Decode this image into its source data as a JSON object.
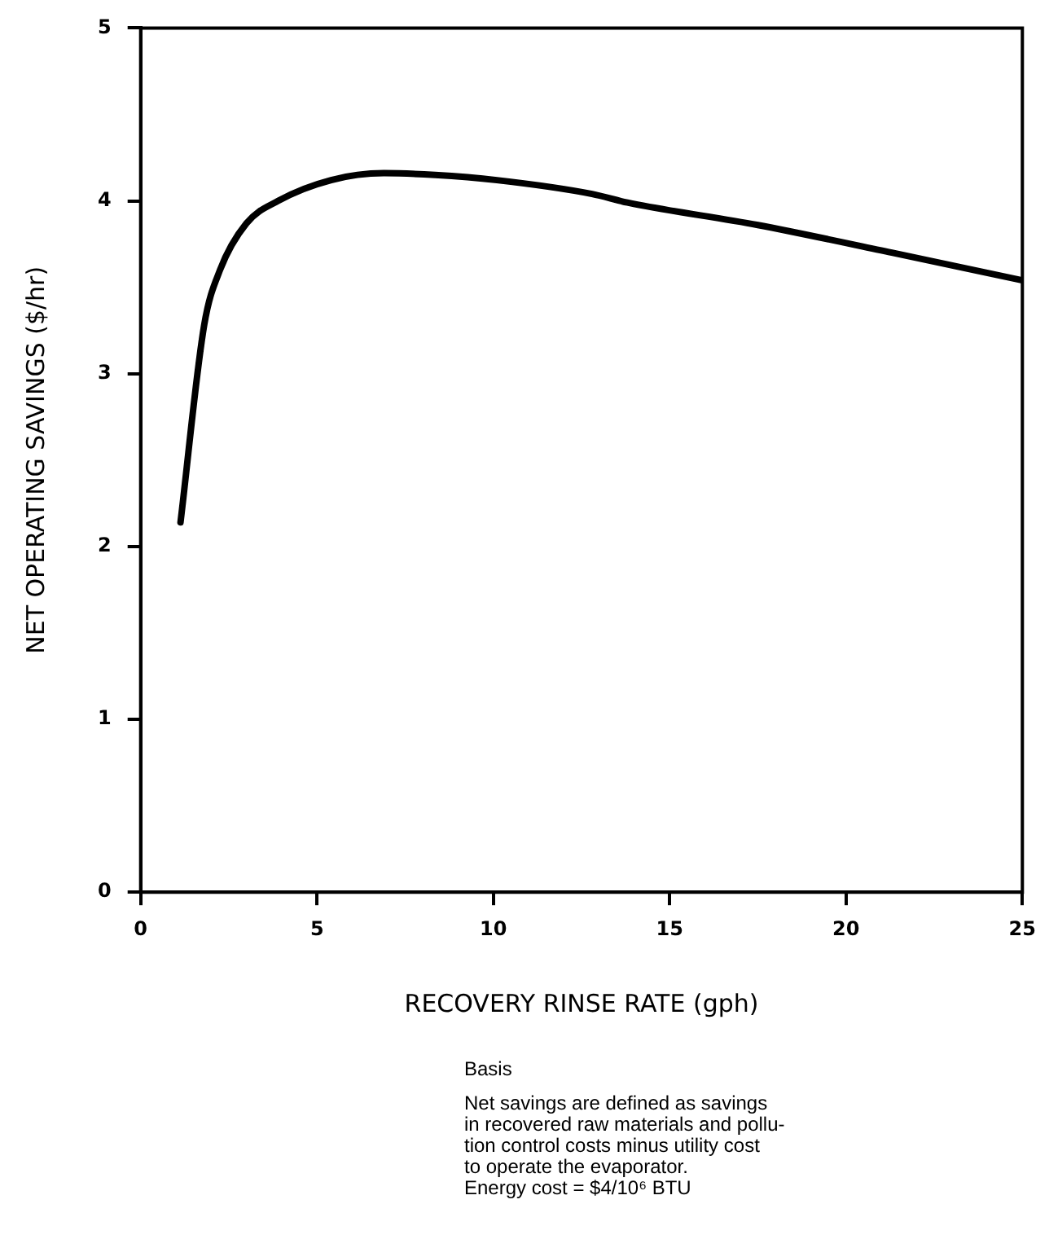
{
  "chart_data": {
    "type": "line",
    "xlabel": "RECOVERY RINSE RATE (gph)",
    "ylabel": "NET OPERATING SAVINGS ($/hr)",
    "x": [
      1.13,
      1.8,
      2.25,
      3.0,
      3.9,
      5.4,
      6.9,
      8.35,
      10.1,
      12.8,
      13.8,
      17.5,
      21.3,
      25
    ],
    "series": [
      {
        "color": "#000000",
        "values": [
          2.14,
          3.28,
          3.6,
          3.87,
          4.0,
          4.12,
          4.16,
          4.15,
          4.12,
          4.04,
          3.99,
          3.86,
          3.7,
          3.54
        ]
      }
    ],
    "xlim": [
      0,
      25
    ],
    "xticks": [
      0,
      5,
      10,
      15,
      20,
      25
    ],
    "ylim": [
      0,
      5
    ],
    "yticks": [
      0,
      1,
      2,
      3,
      4,
      5
    ],
    "grid": false,
    "legend": false,
    "marker": "none",
    "line_style": "solid",
    "annotations": [
      "Basis",
      "Net savings are defined as savings\nin recovered raw materials and pollu-\ntion control costs minus utility cost\nto operate the evaporator.\nEnergy cost = $4/10⁶ BTU"
    ]
  }
}
